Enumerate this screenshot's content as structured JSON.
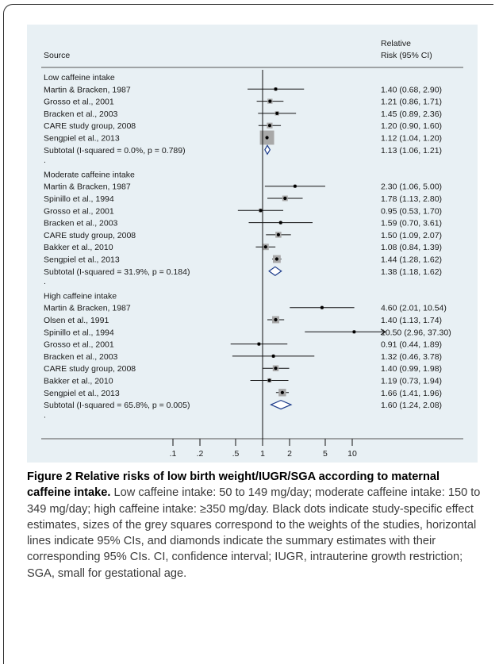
{
  "figure": {
    "header_source": "Source",
    "header_rr_line1": "Relative",
    "header_rr_line2": "Risk (95% CI)",
    "dot_marker": ".",
    "caption_label": "Figure 2",
    "caption_title": "Relative risks of low birth weight/IUGR/SGA according to maternal caffeine intake.",
    "caption_text": "Low caffeine intake: 50 to 149 mg/day; moderate caffeine intake: 150 to 349 mg/day; high caffeine intake: ≥350 mg/day. Black dots indicate study-specific effect estimates, sizes of the grey squares correspond to the weights of the studies, horizontal lines indicate 95% CIs, and diamonds indicate the summary estimates with their corresponding 95% CIs. CI, confidence interval; IUGR, intrauterine growth restriction; SGA, small for gestational age."
  },
  "chart_data": {
    "type": "forest",
    "x_scale": "log",
    "null_line": 1,
    "x_ticks": [
      0.1,
      0.2,
      0.5,
      1,
      2,
      5,
      10
    ],
    "x_tick_labels": [
      ".1",
      ".2",
      ".5",
      "1",
      "2",
      "5",
      "10"
    ],
    "groups": [
      {
        "label": "Low caffeine intake",
        "studies": [
          {
            "source": "Martin & Bracken, 1987",
            "rr": 1.4,
            "lo": 0.68,
            "hi": 2.9,
            "weight": 1.2,
            "text": "1.40 (0.68, 2.90)"
          },
          {
            "source": "Grosso et al., 2001",
            "rr": 1.21,
            "lo": 0.86,
            "hi": 1.71,
            "weight": 2.5,
            "text": "1.21 (0.86, 1.71)"
          },
          {
            "source": "Bracken et al., 2003",
            "rr": 1.45,
            "lo": 0.89,
            "hi": 2.36,
            "weight": 1.8,
            "text": "1.45 (0.89, 2.36)"
          },
          {
            "source": "CARE study group, 2008",
            "rr": 1.2,
            "lo": 0.9,
            "hi": 1.6,
            "weight": 3.2,
            "text": "1.20 (0.90, 1.60)"
          },
          {
            "source": "Sengpiel et al., 2013",
            "rr": 1.12,
            "lo": 1.04,
            "hi": 1.2,
            "weight": 20,
            "text": "1.12 (1.04, 1.20)"
          }
        ],
        "subtotal": {
          "label": "Subtotal  (I-squared = 0.0%, p = 0.789)",
          "rr": 1.13,
          "lo": 1.06,
          "hi": 1.21,
          "text": "1.13 (1.06, 1.21)"
        }
      },
      {
        "label": "Moderate caffeine intake",
        "studies": [
          {
            "source": "Martin & Bracken, 1987",
            "rr": 2.3,
            "lo": 1.06,
            "hi": 5.0,
            "weight": 1.0,
            "text": "2.30 (1.06, 5.00)"
          },
          {
            "source": "Spinillo et al., 1994",
            "rr": 1.78,
            "lo": 1.13,
            "hi": 2.8,
            "weight": 3.0,
            "text": "1.78 (1.13, 2.80)"
          },
          {
            "source": "Grosso et al., 2001",
            "rr": 0.95,
            "lo": 0.53,
            "hi": 1.7,
            "weight": 1.5,
            "text": "0.95 (0.53, 1.70)"
          },
          {
            "source": "Bracken et al., 2003",
            "rr": 1.59,
            "lo": 0.7,
            "hi": 3.61,
            "weight": 1.0,
            "text": "1.59 (0.70, 3.61)"
          },
          {
            "source": "CARE study group, 2008",
            "rr": 1.5,
            "lo": 1.09,
            "hi": 2.07,
            "weight": 3.5,
            "text": "1.50 (1.09, 2.07)"
          },
          {
            "source": "Bakker et al., 2010",
            "rr": 1.08,
            "lo": 0.84,
            "hi": 1.39,
            "weight": 4.0,
            "text": "1.08 (0.84, 1.39)"
          },
          {
            "source": "Sengpiel et al., 2013",
            "rr": 1.44,
            "lo": 1.28,
            "hi": 1.62,
            "weight": 6.0,
            "text": "1.44 (1.28, 1.62)"
          }
        ],
        "subtotal": {
          "label": "Subtotal  (I-squared = 31.9%, p = 0.184)",
          "rr": 1.38,
          "lo": 1.18,
          "hi": 1.62,
          "text": "1.38 (1.18, 1.62)"
        }
      },
      {
        "label": "High caffeine intake",
        "studies": [
          {
            "source": "Martin & Bracken, 1987",
            "rr": 4.6,
            "lo": 2.01,
            "hi": 10.54,
            "weight": 1.0,
            "text": "4.60 (2.01, 10.54)"
          },
          {
            "source": "Olsen et al., 1991",
            "rr": 1.4,
            "lo": 1.13,
            "hi": 1.74,
            "weight": 5.0,
            "text": "1.40 (1.13, 1.74)"
          },
          {
            "source": "Spinillo et al., 1994",
            "rr": 10.5,
            "lo": 2.96,
            "hi": 37.3,
            "weight": 0.8,
            "text": "10.50 (2.96, 37.30)"
          },
          {
            "source": "Grosso et al., 2001",
            "rr": 0.91,
            "lo": 0.44,
            "hi": 1.89,
            "weight": 1.0,
            "text": "0.91 (0.44, 1.89)"
          },
          {
            "source": "Bracken et al., 2003",
            "rr": 1.32,
            "lo": 0.46,
            "hi": 3.78,
            "weight": 0.8,
            "text": "1.32 (0.46, 3.78)"
          },
          {
            "source": "CARE study group, 2008",
            "rr": 1.4,
            "lo": 0.99,
            "hi": 1.98,
            "weight": 3.5,
            "text": "1.40 (0.99, 1.98)"
          },
          {
            "source": "Bakker et al., 2010",
            "rr": 1.19,
            "lo": 0.73,
            "hi": 1.94,
            "weight": 1.8,
            "text": "1.19 (0.73, 1.94)"
          },
          {
            "source": "Sengpiel et al., 2013",
            "rr": 1.66,
            "lo": 1.41,
            "hi": 1.96,
            "weight": 5.5,
            "text": "1.66 (1.41, 1.96)"
          }
        ],
        "subtotal": {
          "label": "Subtotal  (I-squared = 65.8%, p = 0.005)",
          "rr": 1.6,
          "lo": 1.24,
          "hi": 2.08,
          "text": "1.60 (1.24, 2.08)"
        }
      }
    ]
  }
}
